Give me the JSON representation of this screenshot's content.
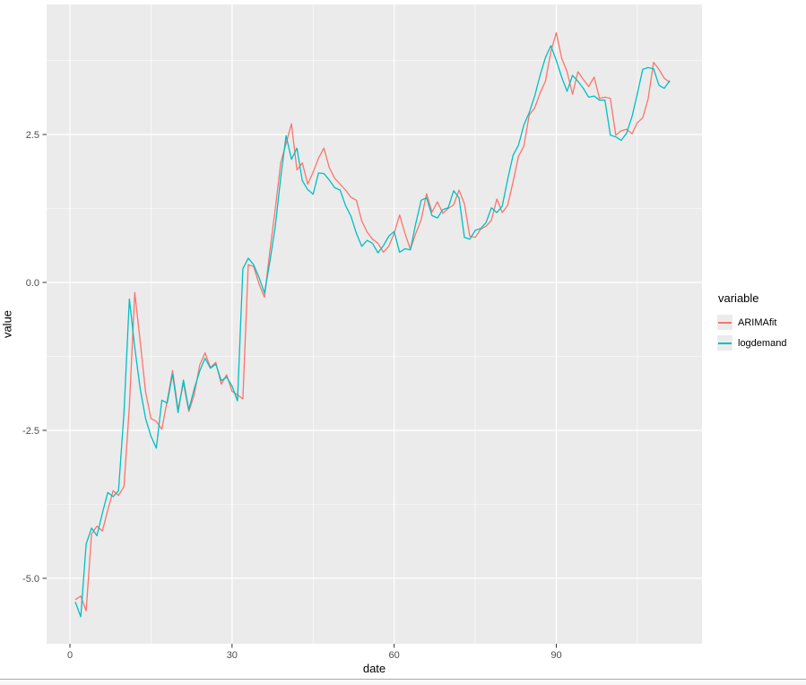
{
  "style": {
    "panel_bg": "#EBEBEB",
    "grid_color": "#FFFFFF",
    "tick_color": "#333333",
    "tick_label_color": "#4D4D4D",
    "axis_title_color": "#000000"
  },
  "chart_data": {
    "type": "line",
    "title": "",
    "xlabel": "date",
    "ylabel": "value",
    "grid": true,
    "legend_position": "right",
    "xlim": [
      -4.3,
      116.9
    ],
    "ylim": [
      -6.11,
      4.7
    ],
    "x_ticks": {
      "values": [
        0,
        30,
        60,
        90
      ],
      "labels": [
        "0",
        "30",
        "60",
        "90"
      ]
    },
    "y_ticks": {
      "values": [
        2.5,
        0.0,
        -2.5,
        -5.0
      ],
      "labels": [
        "2.5",
        "0.0",
        "-2.5",
        "-5.0"
      ]
    },
    "legend": {
      "title": "variable",
      "entries": [
        {
          "label": "ARIMAfit",
          "color": "#F8766D"
        },
        {
          "label": "logdemand",
          "color": "#00BFC4"
        }
      ]
    },
    "x": [
      1,
      2,
      3,
      4,
      5,
      6,
      7,
      8,
      9,
      10,
      11,
      12,
      13,
      14,
      15,
      16,
      17,
      18,
      19,
      20,
      21,
      22,
      23,
      24,
      25,
      26,
      27,
      28,
      29,
      30,
      31,
      32,
      33,
      34,
      35,
      36,
      37,
      38,
      39,
      40,
      41,
      42,
      43,
      44,
      45,
      46,
      47,
      48,
      49,
      50,
      51,
      52,
      53,
      54,
      55,
      56,
      57,
      58,
      59,
      60,
      61,
      62,
      63,
      64,
      65,
      66,
      67,
      68,
      69,
      70,
      71,
      72,
      73,
      74,
      75,
      76,
      77,
      78,
      79,
      80,
      81,
      82,
      83,
      84,
      85,
      86,
      87,
      88,
      89,
      90,
      91,
      92,
      93,
      94,
      95,
      96,
      97,
      98,
      99,
      100,
      101,
      102,
      103,
      104,
      105,
      106,
      107,
      108,
      109,
      110,
      111
    ],
    "series": [
      {
        "name": "ARIMAfit",
        "color": "#F8766D",
        "values": [
          -5.36,
          -5.3,
          -5.55,
          -4.25,
          -4.12,
          -4.2,
          -3.85,
          -3.52,
          -3.6,
          -3.45,
          -2.1,
          -0.17,
          -1.0,
          -1.85,
          -2.3,
          -2.35,
          -2.48,
          -2.0,
          -1.49,
          -2.15,
          -1.7,
          -2.18,
          -1.9,
          -1.4,
          -1.19,
          -1.44,
          -1.35,
          -1.72,
          -1.56,
          -1.84,
          -1.9,
          -1.97,
          0.3,
          0.27,
          -0.03,
          -0.25,
          0.53,
          1.24,
          2.02,
          2.35,
          2.68,
          1.9,
          2.02,
          1.66,
          1.86,
          2.1,
          2.27,
          1.94,
          1.76,
          1.66,
          1.56,
          1.44,
          1.39,
          1.04,
          0.85,
          0.73,
          0.66,
          0.51,
          0.61,
          0.83,
          1.14,
          0.83,
          0.56,
          0.83,
          1.06,
          1.5,
          1.19,
          1.36,
          1.17,
          1.25,
          1.31,
          1.56,
          1.33,
          0.78,
          0.76,
          0.9,
          0.95,
          1.05,
          1.41,
          1.18,
          1.3,
          1.7,
          2.13,
          2.3,
          2.83,
          2.95,
          3.2,
          3.4,
          3.9,
          4.22,
          3.79,
          3.56,
          3.18,
          3.56,
          3.43,
          3.31,
          3.47,
          3.11,
          3.13,
          3.11,
          2.49,
          2.56,
          2.59,
          2.51,
          2.7,
          2.78,
          3.1,
          3.72,
          3.6,
          3.45,
          3.38
        ]
      },
      {
        "name": "logdemand",
        "color": "#00BFC4",
        "values": [
          -5.4,
          -5.65,
          -4.42,
          -4.15,
          -4.28,
          -3.9,
          -3.55,
          -3.62,
          -3.52,
          -2.2,
          -0.28,
          -1.1,
          -1.8,
          -2.3,
          -2.6,
          -2.8,
          -1.99,
          -2.04,
          -1.55,
          -2.2,
          -1.65,
          -2.15,
          -1.8,
          -1.5,
          -1.28,
          -1.45,
          -1.38,
          -1.66,
          -1.6,
          -1.75,
          -2.0,
          0.23,
          0.41,
          0.3,
          0.08,
          -0.18,
          0.35,
          0.94,
          1.77,
          2.48,
          2.08,
          2.27,
          1.72,
          1.57,
          1.49,
          1.85,
          1.84,
          1.73,
          1.6,
          1.56,
          1.3,
          1.12,
          0.83,
          0.61,
          0.71,
          0.66,
          0.5,
          0.62,
          0.78,
          0.86,
          0.51,
          0.57,
          0.55,
          1.0,
          1.39,
          1.43,
          1.13,
          1.09,
          1.23,
          1.26,
          1.55,
          1.43,
          0.76,
          0.73,
          0.88,
          0.91,
          1.01,
          1.26,
          1.18,
          1.29,
          1.74,
          2.15,
          2.32,
          2.66,
          2.87,
          3.15,
          3.5,
          3.8,
          4.0,
          3.75,
          3.47,
          3.23,
          3.5,
          3.4,
          3.28,
          3.13,
          3.15,
          3.08,
          3.08,
          2.49,
          2.46,
          2.4,
          2.52,
          2.8,
          3.19,
          3.6,
          3.63,
          3.61,
          3.33,
          3.28,
          3.41
        ]
      }
    ]
  }
}
